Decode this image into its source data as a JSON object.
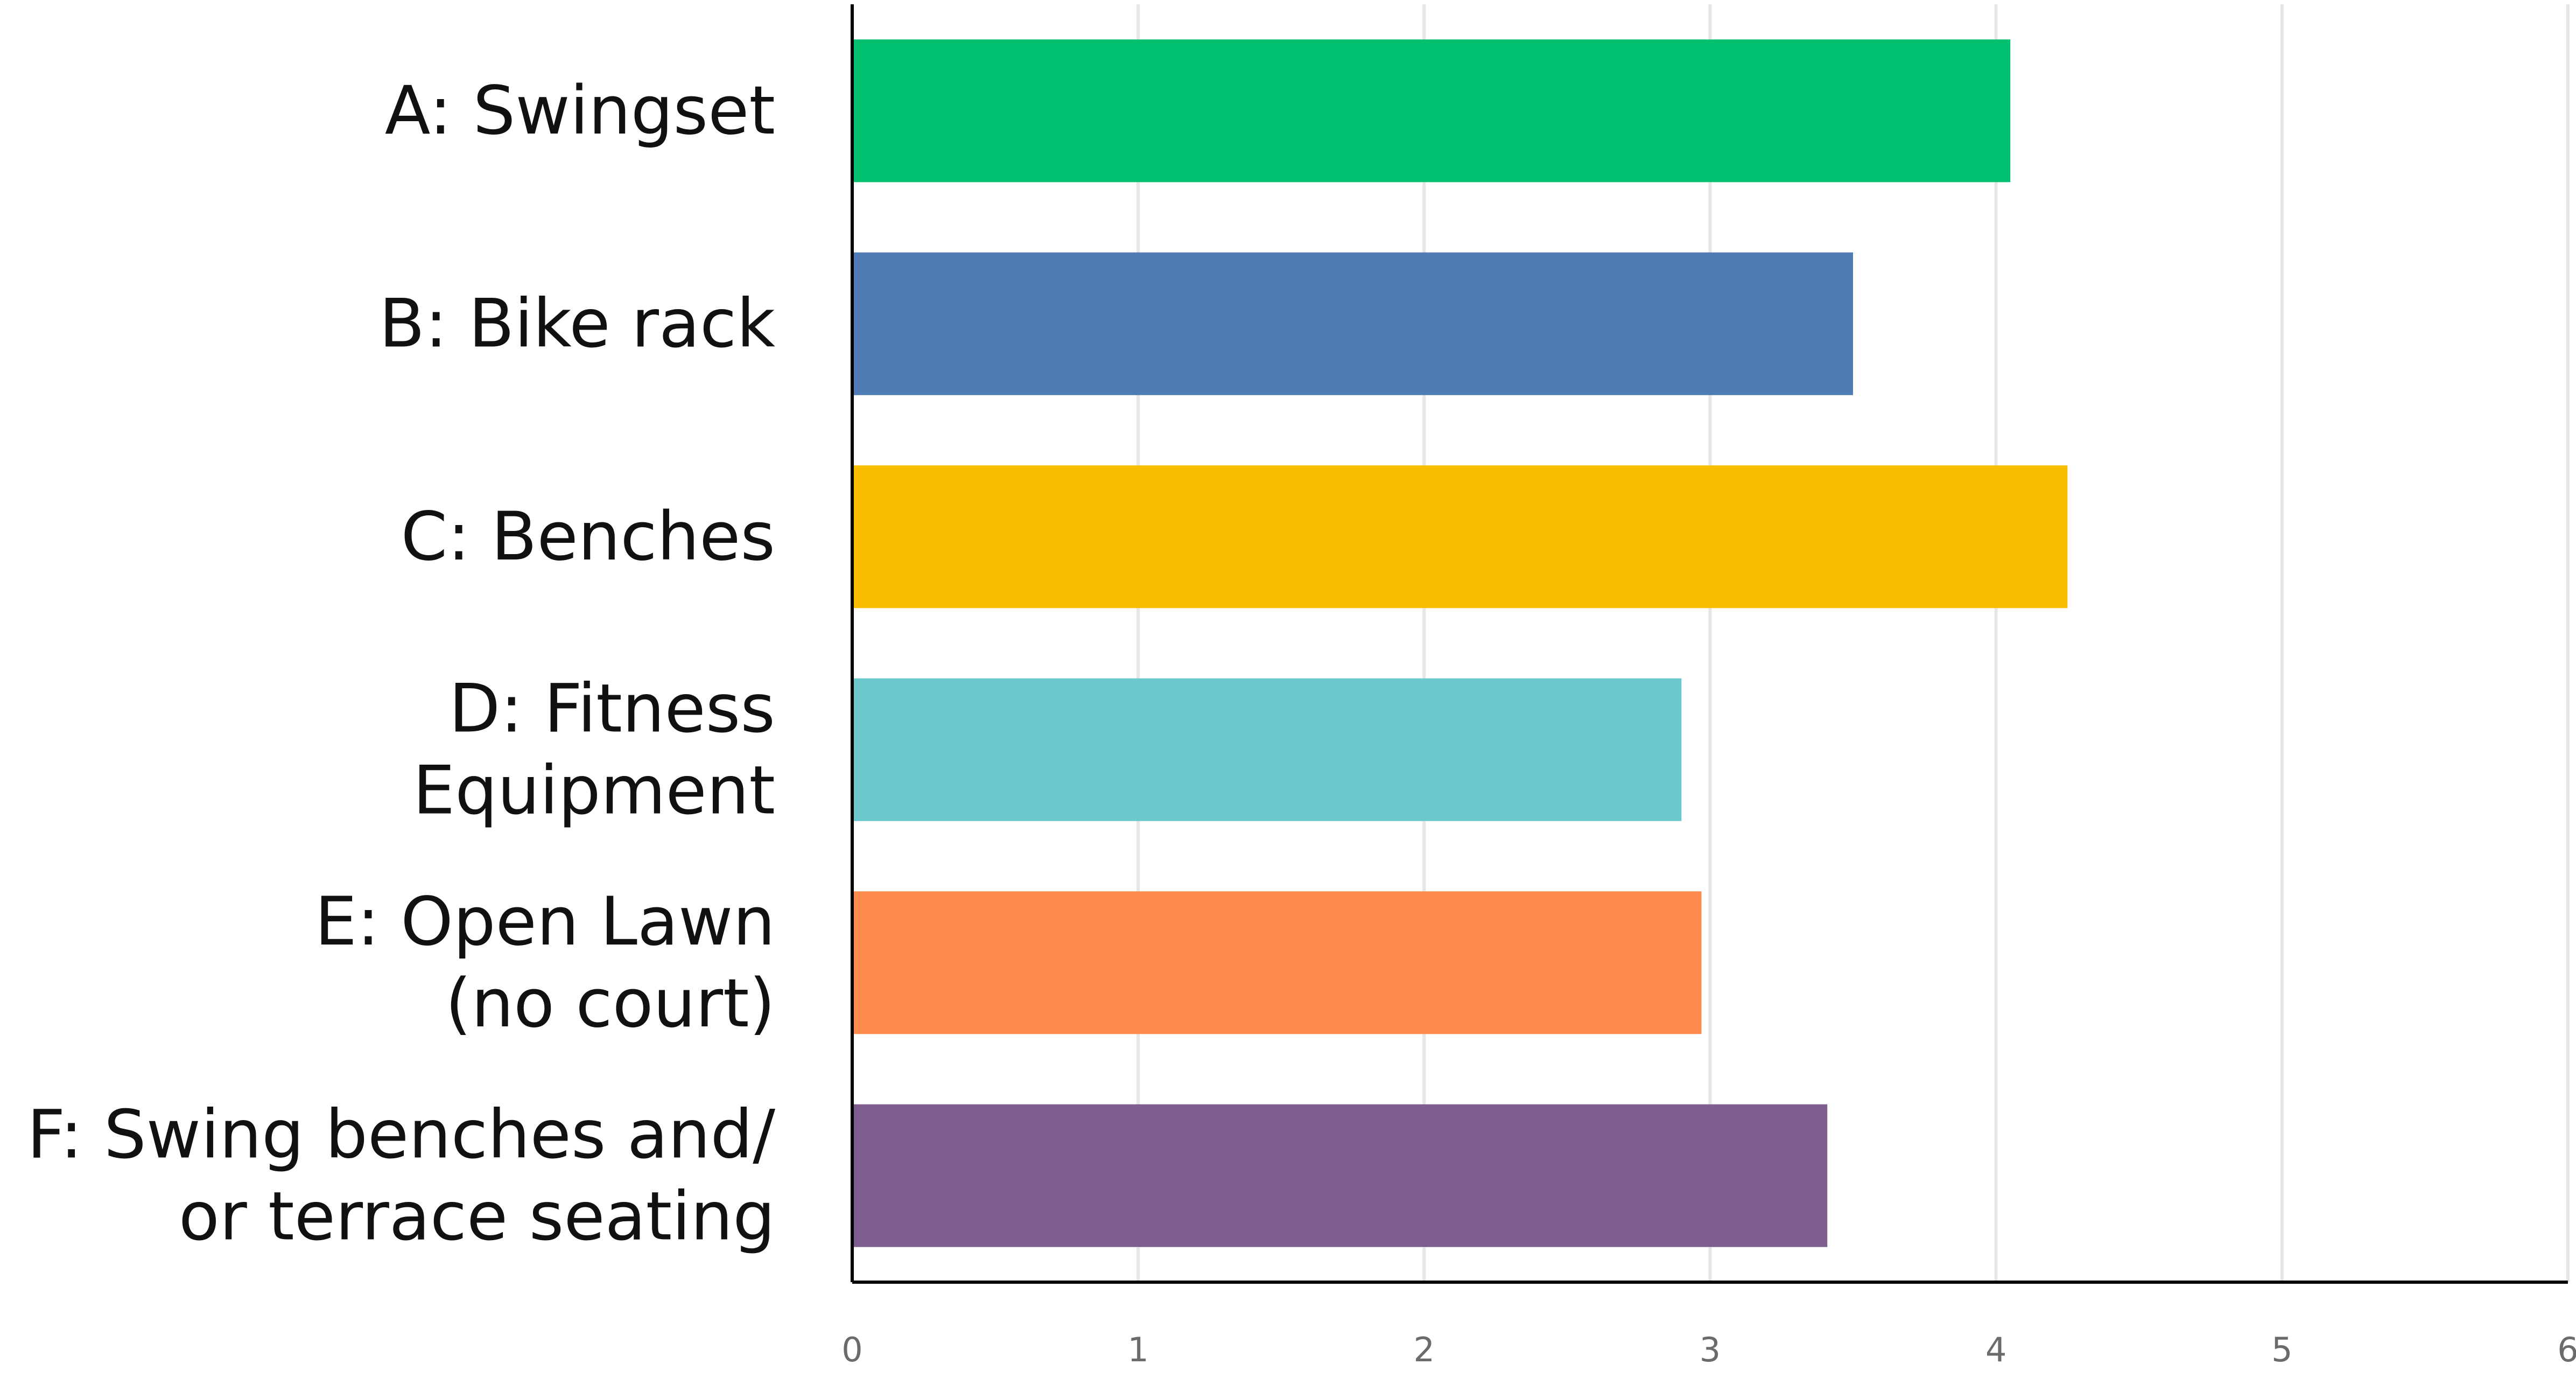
{
  "chart_data": {
    "type": "bar",
    "orientation": "horizontal",
    "title": "",
    "xlabel": "",
    "ylabel": "",
    "categories": [
      [
        "A: Swingset"
      ],
      [
        "B: Bike rack"
      ],
      [
        "C: Benches"
      ],
      [
        "D: Fitness",
        "Equipment"
      ],
      [
        "E: Open Lawn",
        "(no court)"
      ],
      [
        "F: Swing benches and/",
        "or terrace seating"
      ]
    ],
    "values": [
      4.05,
      3.5,
      4.25,
      2.9,
      2.97,
      3.41
    ],
    "colors": [
      "#00bf6f",
      "#507cb6",
      "#f9be00",
      "#6bc8cd",
      "#ff8b4f",
      "#7d5e8e"
    ],
    "xlim": [
      0,
      6
    ],
    "xticks": [
      "0",
      "1",
      "2",
      "3",
      "4",
      "5",
      "6"
    ],
    "grid": true,
    "legend": "none"
  }
}
